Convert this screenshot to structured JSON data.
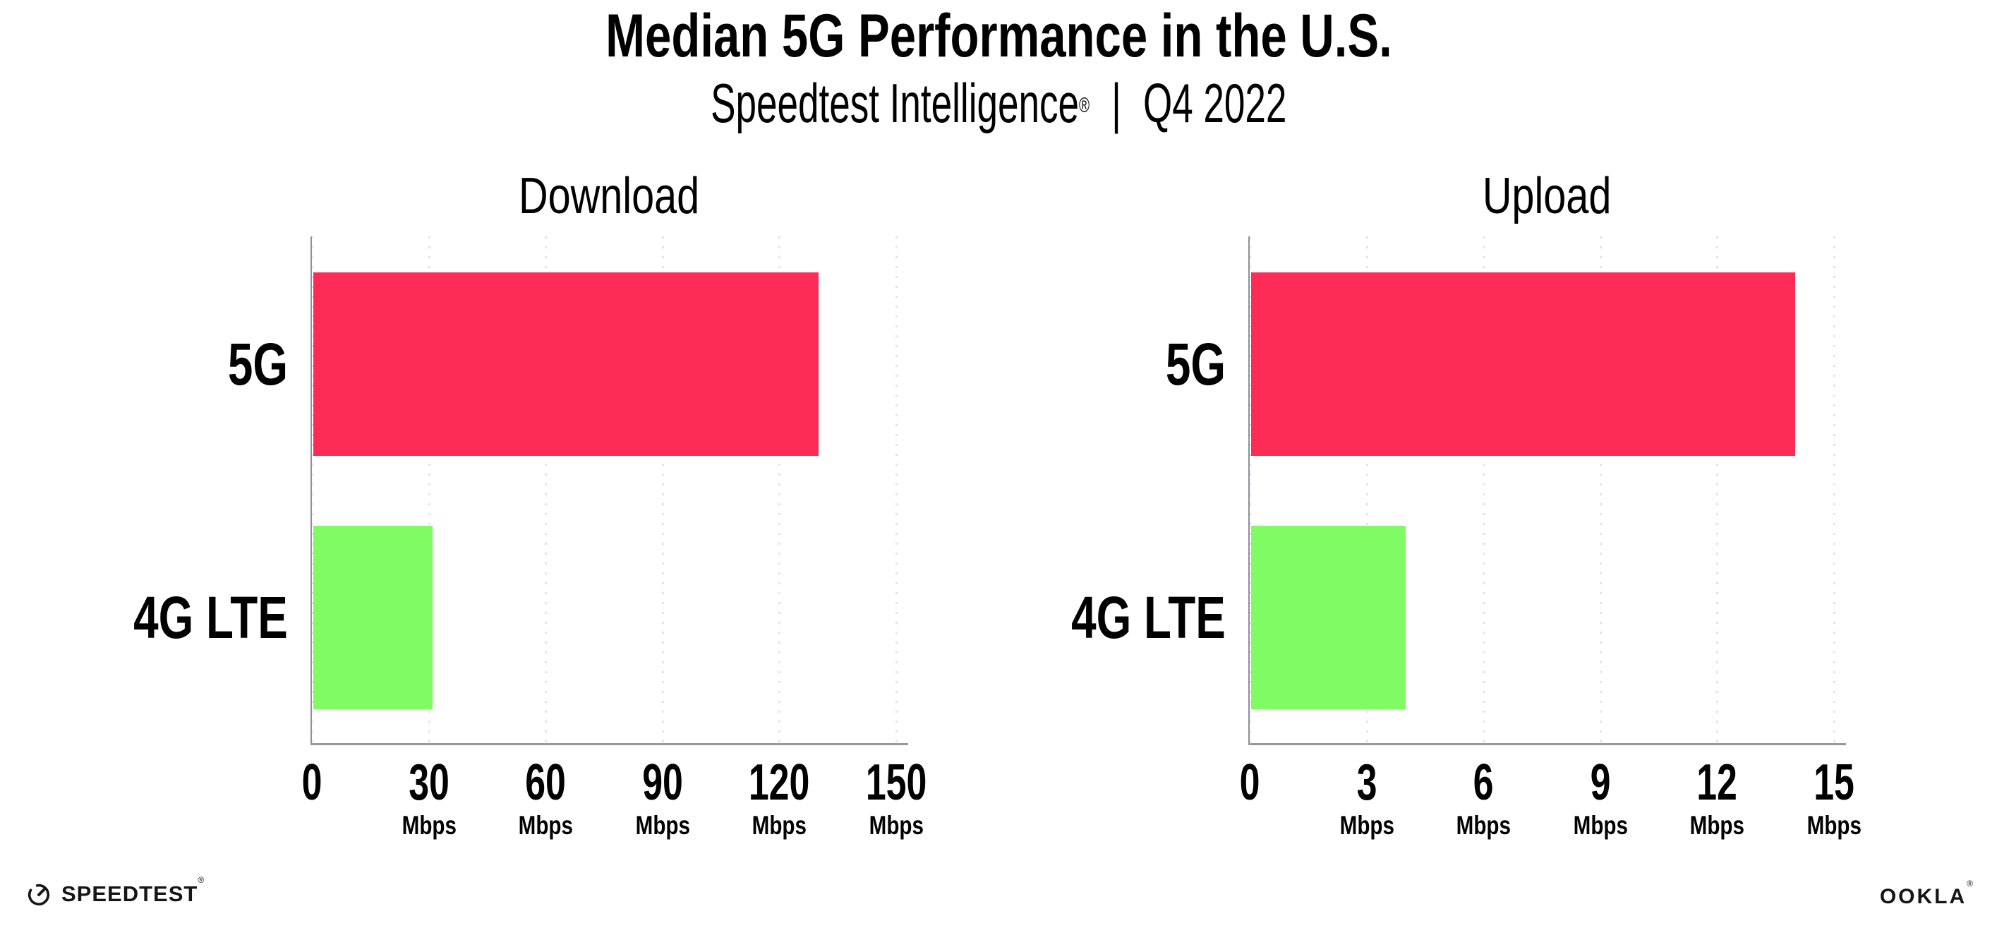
{
  "header": {
    "title": "Median 5G Performance in the U.S.",
    "subtitle": {
      "brand": "Speedtest Intelligence",
      "registered_mark": "®",
      "separator": "|",
      "period": "Q4 2022"
    }
  },
  "chart_data": [
    {
      "type": "bar",
      "orientation": "horizontal",
      "title": "Download",
      "categories": [
        "5G",
        "4G LTE"
      ],
      "values": [
        130,
        31
      ],
      "unit": "Mbps",
      "xlim": [
        0,
        150
      ],
      "xticks": [
        0,
        30,
        60,
        90,
        120,
        150
      ],
      "bar_colors": [
        "#fc2c57",
        "#80fb63"
      ],
      "grid": "vertical-dotted",
      "legend": "none"
    },
    {
      "type": "bar",
      "orientation": "horizontal",
      "title": "Upload",
      "categories": [
        "5G",
        "4G LTE"
      ],
      "values": [
        14,
        4
      ],
      "unit": "Mbps",
      "xlim": [
        0,
        15
      ],
      "xticks": [
        0,
        3,
        6,
        9,
        12,
        15
      ],
      "bar_colors": [
        "#fc2c57",
        "#80fb63"
      ],
      "grid": "vertical-dotted",
      "legend": "none"
    }
  ],
  "footer": {
    "speedtest_wordmark": "SPEEDTEST",
    "speedtest_mark": "®",
    "speedtest_icon": "gauge-icon",
    "ookla_wordmark": "OOKLA",
    "ookla_mark": "®"
  },
  "colors": {
    "background": "#ffffff",
    "bar_5g": "#fc2c57",
    "bar_4g_lte": "#80fb63",
    "axis": "#8f8f97",
    "gridline": "#e3e3ee",
    "text": "#000000"
  }
}
